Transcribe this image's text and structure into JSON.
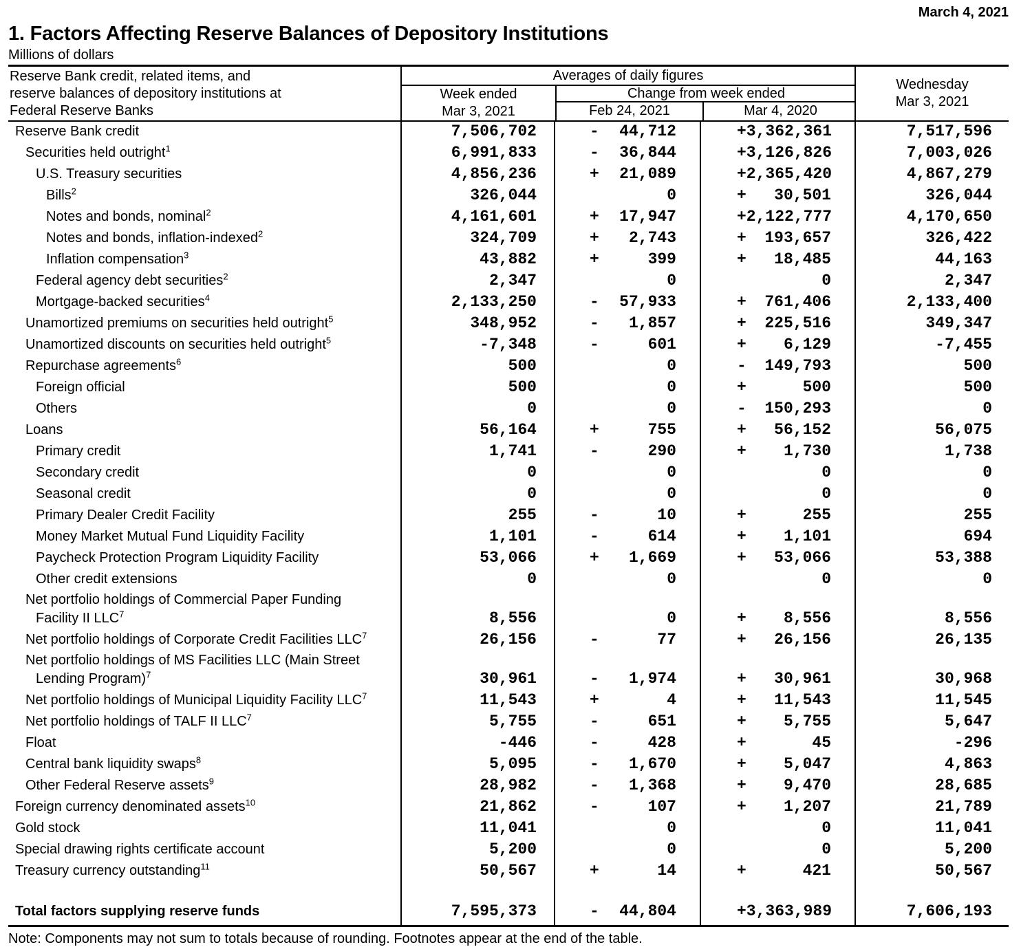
{
  "release_date": "March 4, 2021",
  "title": "1. Factors Affecting Reserve Balances of Depository Institutions",
  "subtitle": "Millions of dollars",
  "header": {
    "stub": [
      "Reserve Bank credit, related items, and",
      "reserve balances of depository institutions at",
      "Federal Reserve Banks"
    ],
    "averages": "Averages of daily figures",
    "week_ended": [
      "Week ended",
      "Mar 3, 2021"
    ],
    "change_from": "Change from week ended",
    "change_cols": [
      "Feb 24, 2021",
      "Mar 4, 2020"
    ],
    "wednesday": [
      "Wednesday",
      "Mar 3, 2021"
    ]
  },
  "table": {
    "rows": [
      {
        "indent": 0,
        "label": "Reserve Bank credit",
        "week": "7,506,702",
        "feb": {
          "sign": "-",
          "value": "44,712"
        },
        "mar": {
          "sign": "",
          "value": "+3,362,361"
        },
        "wed": "7,517,596"
      },
      {
        "indent": 1,
        "label": "Securities held outright",
        "sup": "1",
        "week": "6,991,833",
        "feb": {
          "sign": "-",
          "value": "36,844"
        },
        "mar": {
          "sign": "",
          "value": "+3,126,826"
        },
        "wed": "7,003,026"
      },
      {
        "indent": 2,
        "label": "U.S. Treasury securities",
        "week": "4,856,236",
        "feb": {
          "sign": "+",
          "value": "21,089"
        },
        "mar": {
          "sign": "",
          "value": "+2,365,420"
        },
        "wed": "4,867,279"
      },
      {
        "indent": 3,
        "label": "Bills",
        "sup": "2",
        "week": "326,044",
        "feb": {
          "sign": "",
          "value": "0"
        },
        "mar": {
          "sign": "+",
          "value": "30,501"
        },
        "wed": "326,044"
      },
      {
        "indent": 3,
        "label": "Notes and bonds, nominal",
        "sup": "2",
        "week": "4,161,601",
        "feb": {
          "sign": "+",
          "value": "17,947"
        },
        "mar": {
          "sign": "",
          "value": "+2,122,777"
        },
        "wed": "4,170,650"
      },
      {
        "indent": 3,
        "label": "Notes and bonds, inflation-indexed",
        "sup": "2",
        "week": "324,709",
        "feb": {
          "sign": "+",
          "value": "2,743"
        },
        "mar": {
          "sign": "+",
          "value": "193,657"
        },
        "wed": "326,422"
      },
      {
        "indent": 3,
        "label": "Inflation compensation",
        "sup": "3",
        "week": "43,882",
        "feb": {
          "sign": "+",
          "value": "399"
        },
        "mar": {
          "sign": "+",
          "value": "18,485"
        },
        "wed": "44,163"
      },
      {
        "indent": 2,
        "label": "Federal agency debt securities",
        "sup": "2",
        "week": "2,347",
        "feb": {
          "sign": "",
          "value": "0"
        },
        "mar": {
          "sign": "",
          "value": "0"
        },
        "wed": "2,347"
      },
      {
        "indent": 2,
        "label": "Mortgage-backed securities",
        "sup": "4",
        "week": "2,133,250",
        "feb": {
          "sign": "-",
          "value": "57,933"
        },
        "mar": {
          "sign": "+",
          "value": "761,406"
        },
        "wed": "2,133,400"
      },
      {
        "indent": 1,
        "label": "Unamortized premiums on securities held outright",
        "sup": "5",
        "week": "348,952",
        "feb": {
          "sign": "-",
          "value": "1,857"
        },
        "mar": {
          "sign": "+",
          "value": "225,516"
        },
        "wed": "349,347"
      },
      {
        "indent": 1,
        "label": "Unamortized discounts on securities held outright",
        "sup": "5",
        "week": "-7,348",
        "feb": {
          "sign": "-",
          "value": "601"
        },
        "mar": {
          "sign": "+",
          "value": "6,129"
        },
        "wed": "-7,455"
      },
      {
        "indent": 1,
        "label": "Repurchase agreements",
        "sup": "6",
        "week": "500",
        "feb": {
          "sign": "",
          "value": "0"
        },
        "mar": {
          "sign": "-",
          "value": "149,793"
        },
        "wed": "500"
      },
      {
        "indent": 2,
        "label": "Foreign official",
        "week": "500",
        "feb": {
          "sign": "",
          "value": "0"
        },
        "mar": {
          "sign": "+",
          "value": "500"
        },
        "wed": "500"
      },
      {
        "indent": 2,
        "label": "Others",
        "week": "0",
        "feb": {
          "sign": "",
          "value": "0"
        },
        "mar": {
          "sign": "-",
          "value": "150,293"
        },
        "wed": "0"
      },
      {
        "indent": 1,
        "label": "Loans",
        "week": "56,164",
        "feb": {
          "sign": "+",
          "value": "755"
        },
        "mar": {
          "sign": "+",
          "value": "56,152"
        },
        "wed": "56,075"
      },
      {
        "indent": 2,
        "label": "Primary credit",
        "week": "1,741",
        "feb": {
          "sign": "-",
          "value": "290"
        },
        "mar": {
          "sign": "+",
          "value": "1,730"
        },
        "wed": "1,738"
      },
      {
        "indent": 2,
        "label": "Secondary credit",
        "week": "0",
        "feb": {
          "sign": "",
          "value": "0"
        },
        "mar": {
          "sign": "",
          "value": "0"
        },
        "wed": "0"
      },
      {
        "indent": 2,
        "label": "Seasonal credit",
        "week": "0",
        "feb": {
          "sign": "",
          "value": "0"
        },
        "mar": {
          "sign": "",
          "value": "0"
        },
        "wed": "0"
      },
      {
        "indent": 2,
        "label": "Primary Dealer Credit Facility",
        "week": "255",
        "feb": {
          "sign": "-",
          "value": "10"
        },
        "mar": {
          "sign": "+",
          "value": "255"
        },
        "wed": "255"
      },
      {
        "indent": 2,
        "label": "Money Market Mutual Fund Liquidity Facility",
        "week": "1,101",
        "feb": {
          "sign": "-",
          "value": "614"
        },
        "mar": {
          "sign": "+",
          "value": "1,101"
        },
        "wed": "694"
      },
      {
        "indent": 2,
        "label": "Paycheck Protection Program Liquidity Facility",
        "week": "53,066",
        "feb": {
          "sign": "+",
          "value": "1,669"
        },
        "mar": {
          "sign": "+",
          "value": "53,066"
        },
        "wed": "53,388"
      },
      {
        "indent": 2,
        "label": "Other credit extensions",
        "week": "0",
        "feb": {
          "sign": "",
          "value": "0"
        },
        "mar": {
          "sign": "",
          "value": "0"
        },
        "wed": "0"
      },
      {
        "indent": 1,
        "lines": [
          "Net portfolio holdings of Commercial Paper Funding",
          "Facility II LLC"
        ],
        "sup": "7",
        "week": "8,556",
        "feb": {
          "sign": "",
          "value": "0"
        },
        "mar": {
          "sign": "+",
          "value": "8,556"
        },
        "wed": "8,556"
      },
      {
        "indent": 1,
        "label": "Net portfolio holdings of Corporate Credit Facilities LLC",
        "sup": "7",
        "week": "26,156",
        "feb": {
          "sign": "-",
          "value": "77"
        },
        "mar": {
          "sign": "+",
          "value": "26,156"
        },
        "wed": "26,135"
      },
      {
        "indent": 1,
        "lines": [
          "Net portfolio holdings of MS Facilities LLC (Main Street",
          "Lending Program)"
        ],
        "sup": "7",
        "week": "30,961",
        "feb": {
          "sign": "-",
          "value": "1,974"
        },
        "mar": {
          "sign": "+",
          "value": "30,961"
        },
        "wed": "30,968"
      },
      {
        "indent": 1,
        "label": "Net portfolio holdings of Municipal Liquidity Facility LLC",
        "sup": "7",
        "week": "11,543",
        "feb": {
          "sign": "+",
          "value": "4"
        },
        "mar": {
          "sign": "+",
          "value": "11,543"
        },
        "wed": "11,545"
      },
      {
        "indent": 1,
        "label": "Net portfolio holdings of TALF II LLC",
        "sup": "7",
        "week": "5,755",
        "feb": {
          "sign": "-",
          "value": "651"
        },
        "mar": {
          "sign": "+",
          "value": "5,755"
        },
        "wed": "5,647"
      },
      {
        "indent": 1,
        "label": "Float",
        "week": "-446",
        "feb": {
          "sign": "-",
          "value": "428"
        },
        "mar": {
          "sign": "+",
          "value": "45"
        },
        "wed": "-296"
      },
      {
        "indent": 1,
        "label": "Central bank liquidity swaps",
        "sup": "8",
        "week": "5,095",
        "feb": {
          "sign": "-",
          "value": "1,670"
        },
        "mar": {
          "sign": "+",
          "value": "5,047"
        },
        "wed": "4,863"
      },
      {
        "indent": 1,
        "label": "Other Federal Reserve assets",
        "sup": "9",
        "week": "28,982",
        "feb": {
          "sign": "-",
          "value": "1,368"
        },
        "mar": {
          "sign": "+",
          "value": "9,470"
        },
        "wed": "28,685"
      },
      {
        "indent": 0,
        "label": "Foreign currency denominated assets",
        "sup": "10",
        "week": "21,862",
        "feb": {
          "sign": "-",
          "value": "107"
        },
        "mar": {
          "sign": "+",
          "value": "1,207"
        },
        "wed": "21,789"
      },
      {
        "indent": 0,
        "label": "Gold stock",
        "week": "11,041",
        "feb": {
          "sign": "",
          "value": "0"
        },
        "mar": {
          "sign": "",
          "value": "0"
        },
        "wed": "11,041"
      },
      {
        "indent": 0,
        "label": "Special drawing rights certificate account",
        "week": "5,200",
        "feb": {
          "sign": "",
          "value": "0"
        },
        "mar": {
          "sign": "",
          "value": "0"
        },
        "wed": "5,200"
      },
      {
        "indent": 0,
        "label": "Treasury currency outstanding",
        "sup": "11",
        "week": "50,567",
        "feb": {
          "sign": "+",
          "value": "14"
        },
        "mar": {
          "sign": "+",
          "value": "421"
        },
        "wed": "50,567"
      },
      {
        "type": "spacer"
      },
      {
        "indent": 0,
        "bold": true,
        "label": "Total factors supplying reserve funds",
        "week": "7,595,373",
        "feb": {
          "sign": "-",
          "value": "44,804"
        },
        "mar": {
          "sign": "",
          "value": "+3,363,989"
        },
        "wed": "7,606,193"
      }
    ]
  },
  "note": "Note: Components may not sum to totals because of rounding. Footnotes appear at the end of the table."
}
